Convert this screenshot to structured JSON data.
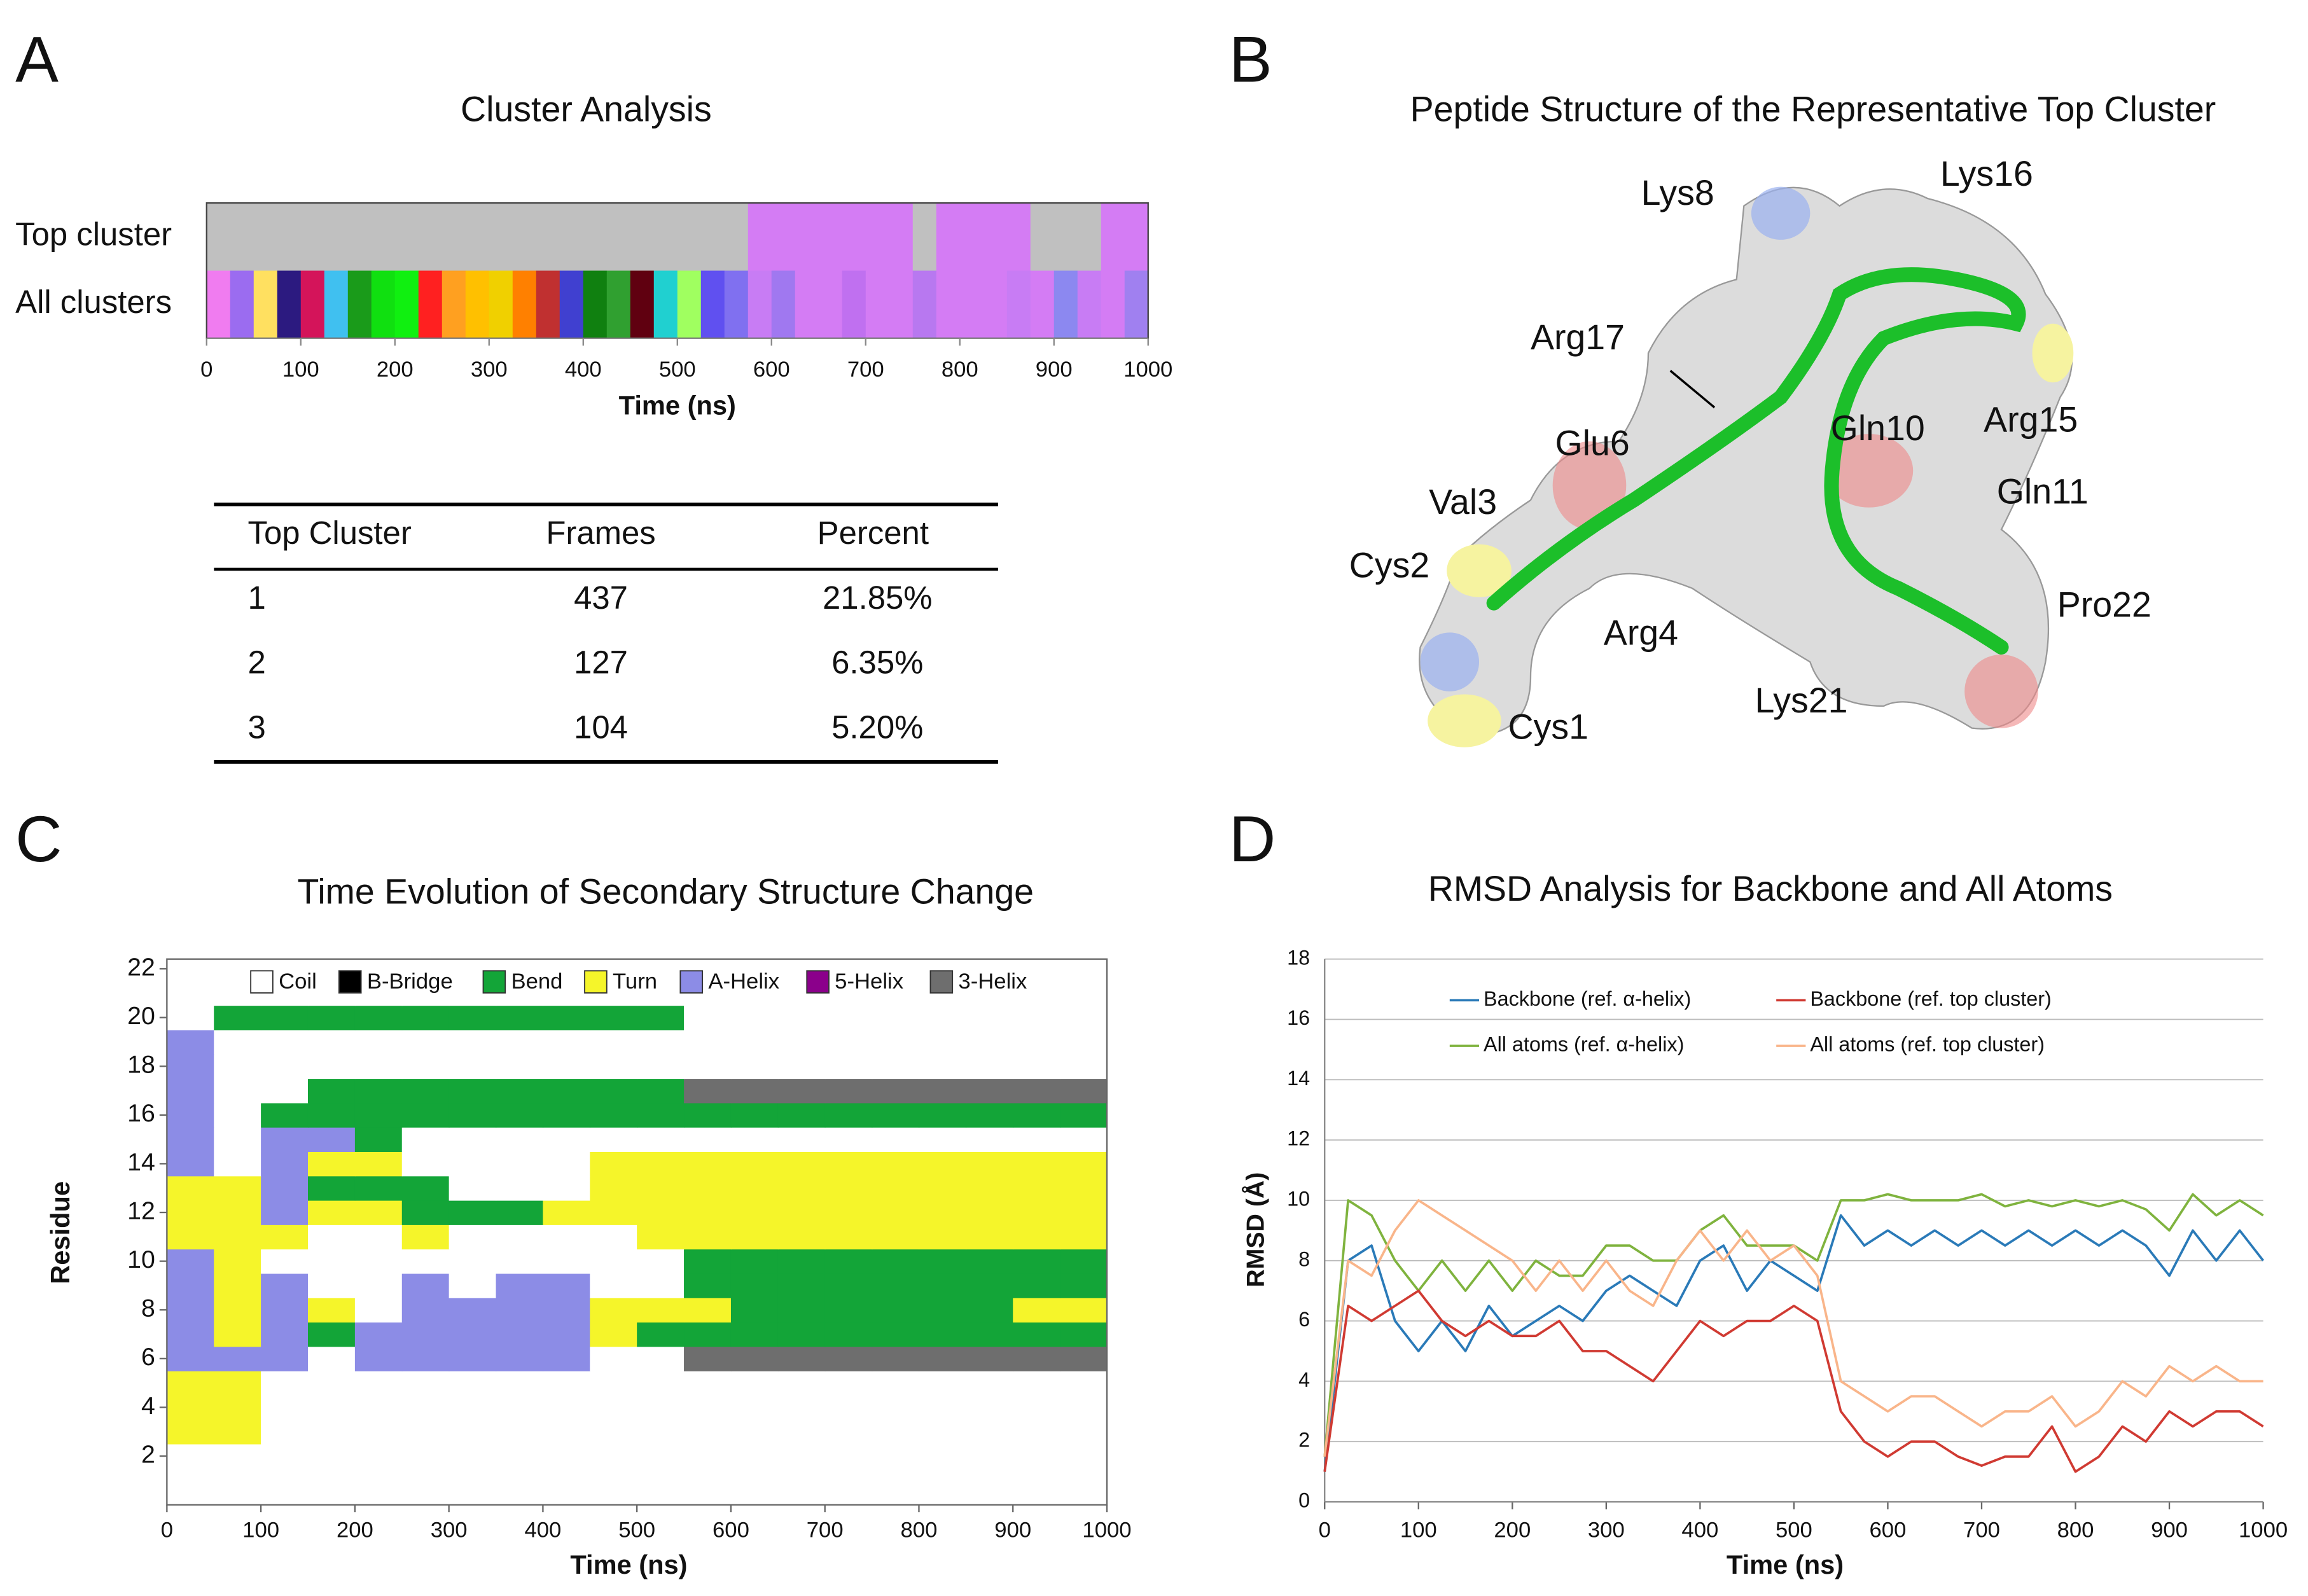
{
  "panel_letters": [
    "A",
    "B",
    "C",
    "D"
  ],
  "chart_data": [
    {
      "type": "timeline",
      "title": "Cluster Analysis",
      "xlabel": "Time (ns)",
      "xlim": [
        0,
        1000
      ],
      "xticks": [
        0,
        100,
        200,
        300,
        400,
        500,
        600,
        700,
        800,
        900,
        1000
      ],
      "bins": [
        0,
        25,
        50,
        75,
        100,
        125,
        150,
        175,
        200,
        225,
        250,
        275,
        300,
        325,
        350,
        375,
        400,
        425,
        450,
        475,
        500,
        525,
        550,
        575,
        600,
        625,
        650,
        675,
        700,
        725,
        750,
        775,
        800,
        825,
        850,
        875,
        900,
        925,
        950,
        975,
        1000
      ],
      "series": [
        {
          "name": "Top cluster",
          "colors": [
            "#c0c0c0",
            "#c0c0c0",
            "#c0c0c0",
            "#c0c0c0",
            "#c0c0c0",
            "#c0c0c0",
            "#c0c0c0",
            "#c0c0c0",
            "#c0c0c0",
            "#c0c0c0",
            "#c0c0c0",
            "#c0c0c0",
            "#c0c0c0",
            "#c0c0c0",
            "#c0c0c0",
            "#c0c0c0",
            "#c0c0c0",
            "#c0c0c0",
            "#c0c0c0",
            "#c0c0c0",
            "#c0c0c0",
            "#c0c0c0",
            "#c0c0c0",
            "#d47cf4",
            "#d47cf4",
            "#d47cf4",
            "#d47cf4",
            "#d47cf4",
            "#d47cf4",
            "#d47cf4",
            "#c0c0c0",
            "#d47cf4",
            "#d47cf4",
            "#d47cf4",
            "#d47cf4",
            "#c0c0c0",
            "#c0c0c0",
            "#c0c0c0",
            "#d47cf4",
            "#d47cf4"
          ]
        },
        {
          "name": "All clusters",
          "colors": [
            "#f07cf0",
            "#9b6cf0",
            "#ffe060",
            "#2c1a80",
            "#d4145a",
            "#40c0f0",
            "#1a9b1a",
            "#10e010",
            "#10f010",
            "#ff2020",
            "#ffa020",
            "#ffc000",
            "#f0d000",
            "#ff8000",
            "#c03030",
            "#4040d0",
            "#108010",
            "#30a030",
            "#600010",
            "#20d0d0",
            "#a0ff60",
            "#6050f0",
            "#8070f0",
            "#c87cf4",
            "#a078f0",
            "#d47cf4",
            "#d47cf4",
            "#c070f0",
            "#d47cf4",
            "#d47cf4",
            "#b878f0",
            "#d47cf4",
            "#d47cf4",
            "#d47cf4",
            "#c87cf4",
            "#d47cf4",
            "#8c88f0",
            "#c87cf4",
            "#d47cf4",
            "#a080f0"
          ]
        }
      ]
    },
    {
      "type": "heatmap",
      "title": "Time Evolution of Secondary Structure Change",
      "xlabel": "Time (ns)",
      "ylabel": "Residue",
      "xlim": [
        0,
        1000
      ],
      "xticks": [
        0,
        100,
        200,
        300,
        400,
        500,
        600,
        700,
        800,
        900,
        1000
      ],
      "ylim": [
        0,
        22.4
      ],
      "yticks": [
        2,
        4,
        6,
        8,
        10,
        12,
        14,
        16,
        18,
        20,
        22
      ],
      "categories": [
        "Coil",
        "B-Bridge",
        "Bend",
        "Turn",
        "A-Helix",
        "5-Helix",
        "3-Helix"
      ],
      "colors": [
        "#ffffff",
        "#000000",
        "#13a538",
        "#f5f52a",
        "#8c8ce6",
        "#8b008b",
        "#6e6e6e"
      ],
      "bins": [
        0,
        50,
        100,
        150,
        200,
        250,
        300,
        350,
        400,
        450,
        500,
        550,
        600,
        650,
        700,
        750,
        800,
        850,
        900,
        950,
        1000
      ],
      "residues": [
        1,
        2,
        3,
        4,
        5,
        6,
        7,
        8,
        9,
        10,
        11,
        12,
        13,
        14,
        15,
        16,
        17,
        18,
        19,
        20,
        21
      ],
      "states": [
        [
          0,
          0,
          0,
          0,
          0,
          0,
          0,
          0,
          0,
          0,
          0,
          0,
          0,
          0,
          0,
          0,
          0,
          0,
          0,
          0
        ],
        [
          0,
          0,
          0,
          0,
          0,
          0,
          0,
          0,
          0,
          0,
          0,
          0,
          0,
          0,
          0,
          0,
          0,
          0,
          0,
          0
        ],
        [
          3,
          3,
          0,
          0,
          0,
          0,
          0,
          0,
          0,
          0,
          0,
          0,
          0,
          0,
          0,
          0,
          0,
          0,
          0,
          0
        ],
        [
          3,
          3,
          0,
          0,
          0,
          0,
          0,
          0,
          0,
          0,
          0,
          0,
          0,
          0,
          0,
          0,
          0,
          0,
          0,
          0
        ],
        [
          3,
          3,
          0,
          0,
          0,
          0,
          0,
          0,
          0,
          0,
          0,
          0,
          0,
          0,
          0,
          0,
          0,
          0,
          0,
          0
        ],
        [
          4,
          4,
          4,
          0,
          4,
          4,
          4,
          4,
          4,
          0,
          0,
          6,
          6,
          6,
          6,
          6,
          6,
          6,
          6,
          6
        ],
        [
          4,
          3,
          4,
          2,
          4,
          4,
          4,
          4,
          4,
          3,
          2,
          2,
          2,
          2,
          2,
          2,
          2,
          2,
          2,
          2
        ],
        [
          4,
          3,
          4,
          3,
          0,
          4,
          4,
          4,
          4,
          3,
          3,
          3,
          2,
          2,
          2,
          2,
          2,
          2,
          3,
          3
        ],
        [
          4,
          3,
          4,
          0,
          0,
          4,
          0,
          4,
          4,
          0,
          0,
          2,
          2,
          2,
          2,
          2,
          2,
          2,
          2,
          2
        ],
        [
          4,
          3,
          0,
          0,
          0,
          0,
          0,
          0,
          0,
          0,
          0,
          2,
          2,
          2,
          2,
          2,
          2,
          2,
          2,
          2
        ],
        [
          3,
          3,
          3,
          0,
          0,
          3,
          0,
          0,
          0,
          0,
          3,
          3,
          3,
          3,
          3,
          3,
          3,
          3,
          3,
          3
        ],
        [
          3,
          3,
          4,
          3,
          3,
          2,
          2,
          2,
          3,
          3,
          3,
          3,
          3,
          3,
          3,
          3,
          3,
          3,
          3,
          3
        ],
        [
          3,
          3,
          4,
          2,
          2,
          2,
          0,
          0,
          0,
          3,
          3,
          3,
          3,
          3,
          3,
          3,
          3,
          3,
          3,
          3
        ],
        [
          4,
          0,
          4,
          3,
          3,
          0,
          0,
          0,
          0,
          3,
          3,
          3,
          3,
          3,
          3,
          3,
          3,
          3,
          3,
          3
        ],
        [
          4,
          0,
          4,
          4,
          2,
          0,
          0,
          0,
          0,
          0,
          0,
          0,
          0,
          0,
          0,
          0,
          0,
          0,
          0,
          0
        ],
        [
          4,
          0,
          2,
          2,
          2,
          2,
          2,
          2,
          2,
          2,
          2,
          2,
          2,
          2,
          2,
          2,
          2,
          2,
          2,
          2
        ],
        [
          4,
          0,
          0,
          2,
          2,
          2,
          2,
          2,
          2,
          2,
          2,
          6,
          6,
          6,
          6,
          6,
          6,
          6,
          6,
          6
        ],
        [
          4,
          0,
          0,
          0,
          0,
          0,
          0,
          0,
          0,
          0,
          0,
          0,
          0,
          0,
          0,
          0,
          0,
          0,
          0,
          0
        ],
        [
          4,
          0,
          0,
          0,
          0,
          0,
          0,
          0,
          0,
          0,
          0,
          0,
          0,
          0,
          0,
          0,
          0,
          0,
          0,
          0
        ],
        [
          0,
          2,
          2,
          2,
          2,
          2,
          2,
          2,
          2,
          2,
          2,
          0,
          0,
          0,
          0,
          0,
          0,
          0,
          0,
          0
        ],
        [
          0,
          0,
          0,
          0,
          0,
          0,
          0,
          0,
          0,
          0,
          0,
          0,
          0,
          0,
          0,
          0,
          0,
          0,
          0,
          0
        ]
      ]
    },
    {
      "type": "line",
      "title": "RMSD Analysis for Backbone and All Atoms",
      "xlabel": "Time (ns)",
      "ylabel": "RMSD (Å)",
      "xlim": [
        0,
        1000
      ],
      "xticks": [
        0,
        100,
        200,
        300,
        400,
        500,
        600,
        700,
        800,
        900,
        1000
      ],
      "ylim": [
        0,
        18
      ],
      "yticks": [
        0,
        2,
        4,
        6,
        8,
        10,
        12,
        14,
        16,
        18
      ],
      "grid": true,
      "x": [
        0,
        25,
        50,
        75,
        100,
        125,
        150,
        175,
        200,
        225,
        250,
        275,
        300,
        325,
        350,
        375,
        400,
        425,
        450,
        475,
        500,
        525,
        550,
        575,
        600,
        625,
        650,
        675,
        700,
        725,
        750,
        775,
        800,
        825,
        850,
        875,
        900,
        925,
        950,
        975,
        1000
      ],
      "series": [
        {
          "name": "All atoms (ref. α-helix)",
          "color": "#7fb33e",
          "values": [
            1.5,
            10,
            9.5,
            8,
            7,
            8,
            7,
            8,
            7,
            8,
            7.5,
            7.5,
            8.5,
            8.5,
            8,
            8,
            9,
            9.5,
            8.5,
            8.5,
            8.5,
            8,
            10,
            10,
            10.2,
            10,
            10,
            10,
            10.2,
            9.8,
            10,
            9.8,
            10,
            9.8,
            10,
            9.7,
            9,
            10.2,
            9.5,
            10,
            9.5
          ]
        },
        {
          "name": "Backbone (ref. α-helix)",
          "color": "#2a7ab8",
          "values": [
            1,
            8,
            8.5,
            6,
            5,
            6,
            5,
            6.5,
            5.5,
            6,
            6.5,
            6,
            7,
            7.5,
            7,
            6.5,
            8,
            8.5,
            7,
            8,
            7.5,
            7,
            9.5,
            8.5,
            9,
            8.5,
            9,
            8.5,
            9,
            8.5,
            9,
            8.5,
            9,
            8.5,
            9,
            8.5,
            7.5,
            9,
            8,
            9,
            8
          ]
        },
        {
          "name": "All atoms (ref. top cluster)",
          "color": "#f9b58a",
          "values": [
            1.5,
            8,
            7.5,
            9,
            10,
            9.5,
            9,
            8.5,
            8,
            7,
            8,
            7,
            8,
            7,
            6.5,
            8,
            9,
            8,
            9,
            8,
            8.5,
            7.5,
            4,
            3.5,
            3,
            3.5,
            3.5,
            3,
            2.5,
            3,
            3,
            3.5,
            2.5,
            3,
            4,
            3.5,
            4.5,
            4,
            4.5,
            4,
            4
          ]
        },
        {
          "name": "Backbone (ref. top cluster)",
          "color": "#d03a32",
          "values": [
            1,
            6.5,
            6,
            6.5,
            7,
            6,
            5.5,
            6,
            5.5,
            5.5,
            6,
            5,
            5,
            4.5,
            4,
            5,
            6,
            5.5,
            6,
            6,
            6.5,
            6,
            3,
            2,
            1.5,
            2,
            2,
            1.5,
            1.2,
            1.5,
            1.5,
            2.5,
            1,
            1.5,
            2.5,
            2,
            3,
            2.5,
            3,
            3,
            2.5
          ]
        }
      ]
    }
  ],
  "table": {
    "header": [
      "Top Cluster",
      "Frames",
      "Percent"
    ],
    "rows": [
      [
        "1",
        437,
        "21.85%"
      ],
      [
        "2",
        127,
        "6.35%"
      ],
      [
        "3",
        104,
        "5.20%"
      ]
    ]
  },
  "structure": {
    "title": "Peptide Structure of the Representative Top Cluster",
    "labels": [
      "Lys8",
      "Lys16",
      "Arg17",
      "Glu6",
      "Gln10",
      "Arg15",
      "Gln11",
      "Val3",
      "Cys2",
      "Arg4",
      "Pro22",
      "Lys21",
      "Cys1"
    ]
  }
}
